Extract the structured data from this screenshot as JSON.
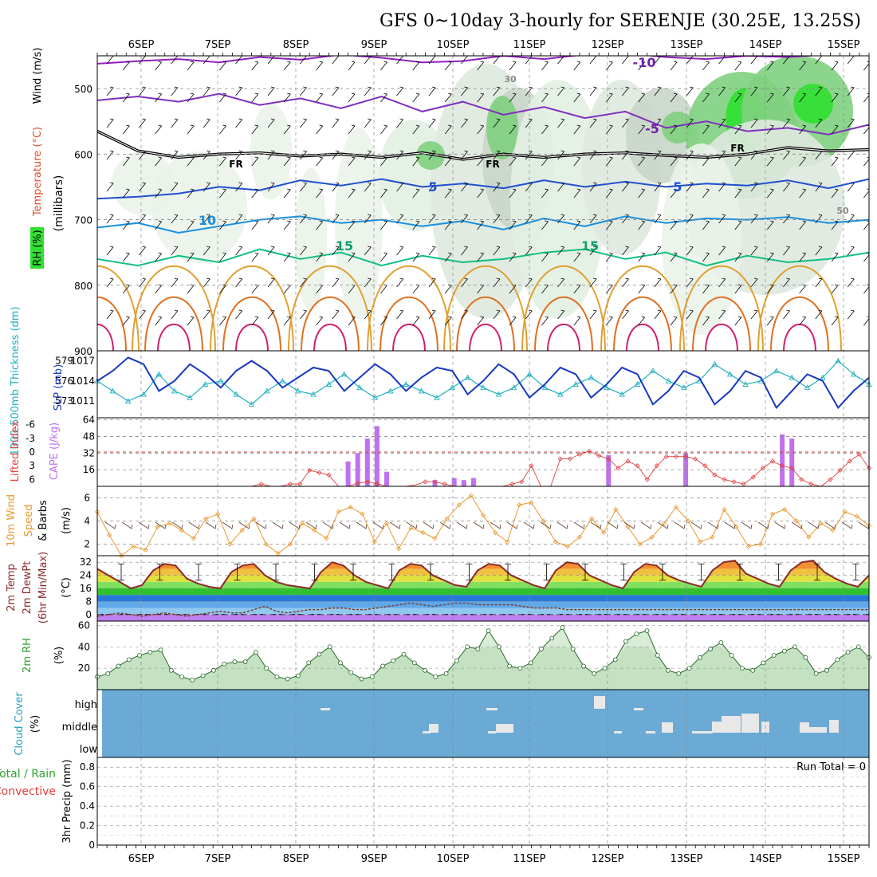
{
  "title": "GFS 0~10day 3-hourly for SERENJE (30.25E, 13.25S)",
  "chart_data": [
    {
      "type": "area",
      "panel": "upper-air cross-section",
      "ylabel": "(millibars)",
      "side_labels": [
        "RH (%)",
        "Temperature (°C)",
        "Wind (m/s)"
      ],
      "ylim": [
        450,
        900
      ],
      "yticks": [
        500,
        600,
        700,
        800,
        900
      ],
      "xticks": [
        "6SEP",
        "7SEP",
        "8SEP",
        "9SEP",
        "10SEP",
        "11SEP",
        "12SEP",
        "13SEP",
        "14SEP",
        "15SEP"
      ],
      "contour_labels": [
        "-10",
        "-5",
        "FR",
        "5",
        "10",
        "15",
        "30",
        "50"
      ],
      "isotherms": [
        {
          "name": "-10",
          "color": "#9020c0",
          "mb": [
            462,
            458,
            455,
            460,
            452,
            456,
            448,
            453,
            460,
            458,
            450,
            455,
            448,
            446,
            452,
            455,
            450,
            452,
            448,
            445
          ]
        },
        {
          "name": "-5",
          "color": "#8030c0",
          "mb": [
            518,
            512,
            520,
            508,
            525,
            515,
            530,
            512,
            535,
            520,
            540,
            528,
            545,
            535,
            560,
            550,
            565,
            560,
            570,
            555
          ]
        },
        {
          "name": "FR",
          "color": "#000000",
          "mb": [
            565,
            595,
            605,
            600,
            598,
            603,
            600,
            605,
            598,
            608,
            600,
            605,
            600,
            598,
            602,
            605,
            600,
            590,
            595,
            593
          ]
        },
        {
          "name": "5",
          "color": "#2050d0",
          "mb": [
            668,
            665,
            660,
            650,
            655,
            640,
            648,
            638,
            650,
            645,
            652,
            640,
            650,
            642,
            650,
            645,
            648,
            640,
            652,
            638
          ]
        },
        {
          "name": "10",
          "color": "#1890e0",
          "mb": [
            712,
            705,
            720,
            710,
            700,
            695,
            705,
            700,
            710,
            702,
            715,
            698,
            710,
            695,
            705,
            698,
            700,
            696,
            705,
            700
          ]
        },
        {
          "name": "15",
          "color": "#10c080",
          "mb": [
            760,
            770,
            755,
            765,
            745,
            760,
            750,
            770,
            755,
            765,
            760,
            750,
            745,
            760,
            750,
            770,
            755,
            765,
            760,
            750
          ]
        }
      ]
    },
    {
      "type": "line",
      "panel": "thickness / SLP",
      "ylabel_left": "1000-500mb Thickness (dm)",
      "ylabel_right": "SLP (mb)",
      "left_ticks": [
        "579",
        "576",
        "573"
      ],
      "right_ticks": [
        "1017",
        "1014",
        "1011"
      ],
      "series": [
        {
          "name": "1000-500mb Thickness (dm)",
          "color": "#20b0c0",
          "values": [
            576.0,
            574.5,
            573.0,
            574.0,
            577.0,
            574.5,
            573.5,
            575.5,
            576.0,
            574.0,
            572.5,
            574.5,
            576.0,
            574.5,
            574.0,
            575.5,
            577.0,
            575.0,
            573.5,
            574.5,
            575.5,
            574.5,
            573.5,
            575.0,
            576.5,
            575.0,
            574.0,
            575.0,
            577.0,
            575.0,
            574.0,
            575.5,
            576.5,
            575.0,
            574.0,
            575.5,
            577.5,
            576.0,
            575.0,
            576.0,
            578.5,
            577.0,
            575.5,
            576.0,
            577.5,
            576.5,
            575.0,
            576.5,
            579.0,
            577.0,
            575.5
          ]
        },
        {
          "name": "SLP (mb)",
          "color": "#1838c0",
          "values": [
            1014.0,
            1015.5,
            1017.5,
            1016.5,
            1012.5,
            1014.0,
            1016.5,
            1015.0,
            1013.0,
            1015.5,
            1017.0,
            1015.5,
            1013.0,
            1014.5,
            1016.0,
            1015.5,
            1012.5,
            1014.5,
            1016.5,
            1015.0,
            1012.5,
            1014.5,
            1016.0,
            1015.5,
            1012.0,
            1014.0,
            1016.5,
            1015.0,
            1011.5,
            1013.5,
            1016.0,
            1015.0,
            1011.5,
            1013.5,
            1016.0,
            1015.0,
            1010.5,
            1012.5,
            1015.5,
            1014.5,
            1010.5,
            1012.5,
            1015.5,
            1014.5,
            1010.0,
            1012.5,
            1015.0,
            1014.0,
            1010.0,
            1012.5,
            1014.5
          ]
        }
      ]
    },
    {
      "type": "bar",
      "panel": "lifted index / CAPE",
      "ylabel_left": "Lifted Index",
      "ylabel_right": "CAPE (J/kg)",
      "cape_ticks": [
        "64",
        "48",
        "32",
        "16"
      ],
      "li_ticks": [
        "-6",
        "-3",
        "0",
        "3",
        "6"
      ],
      "cape_values": [
        0,
        0,
        0,
        0,
        0,
        0,
        0,
        0,
        0,
        0,
        0,
        0,
        0,
        0,
        0,
        0,
        0,
        0,
        0,
        0,
        0,
        0,
        0,
        0,
        0,
        0,
        24,
        32,
        46,
        58,
        14,
        0,
        0,
        0,
        0,
        6,
        0,
        8,
        6,
        8,
        0,
        0,
        0,
        0,
        0,
        0,
        0,
        0,
        0,
        0,
        0,
        0,
        0,
        30,
        0,
        0,
        0,
        0,
        0,
        0,
        0,
        32,
        0,
        0,
        0,
        0,
        0,
        0,
        0,
        0,
        0,
        50,
        46,
        0,
        0,
        0,
        0,
        0,
        0,
        0,
        0
      ],
      "li_values": [
        7.5,
        7.5,
        7.5,
        7.5,
        7.5,
        7.5,
        7.5,
        7.5,
        7.5,
        7.5,
        7.5,
        7.5,
        7.5,
        7.5,
        7.5,
        7.5,
        7.5,
        7.0,
        7.5,
        7.5,
        7.0,
        7.0,
        4.0,
        4.5,
        5.0,
        7.5,
        7.5,
        6.8,
        6.5,
        6.9,
        7.5,
        7.5,
        7.5,
        7.2,
        6.5,
        6.5,
        7.0,
        7.5,
        7.5,
        7.5,
        7.5,
        7.5,
        7.5,
        7.0,
        6.5,
        3.0,
        7.5,
        7.5,
        1.5,
        1.5,
        0.5,
        -0.2,
        0.8,
        1.5,
        3.5,
        2.0,
        3.0,
        6.0,
        3.0,
        1.0,
        1.0,
        1.0,
        1.5,
        3.0,
        5.0,
        6.0,
        6.5,
        7.0,
        5.5,
        3.5,
        2.0,
        3.0,
        3.5,
        6.0,
        7.0,
        7.5,
        6.0,
        4.0,
        2.0,
        0.5,
        3.5
      ]
    },
    {
      "type": "line",
      "panel": "10m wind",
      "ylabel": "10m Wind Speed (m/s) & Barbs",
      "yticks": [
        "6",
        "4",
        "2"
      ],
      "ylim": [
        1,
        7
      ],
      "series": [
        {
          "name": "10m Wind Speed",
          "color": "#e89830",
          "values": [
            4.8,
            2.8,
            1.0,
            1.8,
            1.5,
            3.5,
            3.8,
            3.2,
            2.5,
            4.2,
            4.6,
            2.0,
            3.2,
            4.2,
            2.0,
            1.2,
            2.0,
            3.8,
            3.2,
            2.5,
            4.8,
            5.2,
            4.6,
            2.2,
            3.8,
            1.6,
            3.4,
            3.0,
            2.5,
            4.2,
            5.4,
            6.2,
            4.5,
            3.0,
            2.2,
            5.4,
            5.6,
            4.0,
            2.2,
            1.8,
            2.6,
            4.2,
            3.0,
            5.0,
            3.5,
            2.0,
            2.6,
            3.8,
            5.2,
            4.0,
            2.2,
            2.6,
            5.0,
            3.5,
            1.8,
            2.0,
            4.6,
            5.0,
            4.0,
            2.6,
            3.8,
            3.2,
            4.8,
            4.4,
            3.6
          ]
        }
      ]
    },
    {
      "type": "area",
      "panel": "2m temperature / dewpoint",
      "ylabel": "2m Temp / 2m DewPt (6hr Min/Max) (°C)",
      "yticks": [
        "32",
        "24",
        "16",
        "8",
        "0"
      ],
      "ylim": [
        -4,
        36
      ],
      "series": [
        {
          "name": "2m Temp",
          "color": "#8b2a2a",
          "values": [
            28,
            24,
            20,
            16,
            18,
            27,
            31,
            30,
            22,
            19,
            17,
            16,
            26,
            30,
            31,
            24,
            20,
            18,
            17,
            16,
            26,
            32,
            30,
            24,
            20,
            18,
            16,
            27,
            31,
            30,
            24,
            21,
            18,
            17,
            27,
            31,
            30,
            24,
            21,
            18,
            16,
            27,
            32,
            31,
            24,
            21,
            18,
            16,
            26,
            31,
            30,
            24,
            21,
            19,
            17,
            27,
            32,
            33,
            25,
            22,
            19,
            17,
            27,
            32,
            33,
            26,
            22,
            19,
            17,
            24
          ]
        },
        {
          "name": "2m DewPt",
          "color": "#7a3a2a",
          "values": [
            -1,
            0,
            1,
            0,
            -1,
            0,
            1,
            0,
            -1,
            0,
            1,
            2,
            1,
            1,
            3,
            5,
            2,
            1,
            2,
            3,
            3,
            4,
            4,
            3,
            3,
            4,
            5,
            6,
            7,
            6,
            5,
            6,
            7,
            7,
            6,
            6,
            6,
            6,
            5,
            4,
            4,
            4,
            3,
            3,
            3,
            3,
            3,
            3,
            3,
            3,
            3,
            3,
            3,
            3,
            3,
            3,
            3,
            3,
            3,
            3,
            3,
            3,
            3,
            3,
            3,
            3,
            3,
            3,
            3,
            3
          ]
        }
      ]
    },
    {
      "type": "area",
      "panel": "2m RH",
      "ylabel": "2m RH (%)",
      "yticks": [
        "60",
        "40",
        "20"
      ],
      "ylim": [
        0,
        64
      ],
      "series": [
        {
          "name": "2m RH",
          "color": "#30a030",
          "values": [
            12,
            15,
            22,
            28,
            32,
            35,
            37,
            18,
            12,
            9,
            13,
            18,
            24,
            26,
            26,
            35,
            20,
            12,
            10,
            13,
            25,
            33,
            40,
            25,
            16,
            10,
            12,
            22,
            27,
            33,
            25,
            18,
            12,
            15,
            27,
            40,
            38,
            55,
            40,
            22,
            20,
            25,
            38,
            48,
            58,
            38,
            22,
            15,
            20,
            28,
            45,
            52,
            55,
            32,
            18,
            15,
            20,
            30,
            38,
            44,
            32,
            20,
            18,
            25,
            32,
            36,
            40,
            30,
            15,
            18,
            28,
            35,
            40,
            30
          ]
        }
      ]
    },
    {
      "type": "bar",
      "panel": "cloud cover",
      "ylabel": "Cloud Cover (%)",
      "yticks": [
        "high",
        "middle",
        "low"
      ]
    },
    {
      "type": "bar",
      "panel": "3hr precip",
      "ylabel": "3hr Precip (mm)",
      "legend": [
        "Total / Rain",
        "Convective"
      ],
      "yticks": [
        "0.8",
        "0.6",
        "0.4",
        "0.2",
        "0"
      ],
      "ylim": [
        0,
        0.9
      ],
      "annotation": "Run Total = 0",
      "values": []
    }
  ],
  "colors": {
    "cloud_bg": "#6aaad4",
    "cloud_fill": "#e8e8e8",
    "li_line": "#e04040",
    "cape_bar": "#c070f0",
    "grid": "#999999"
  }
}
